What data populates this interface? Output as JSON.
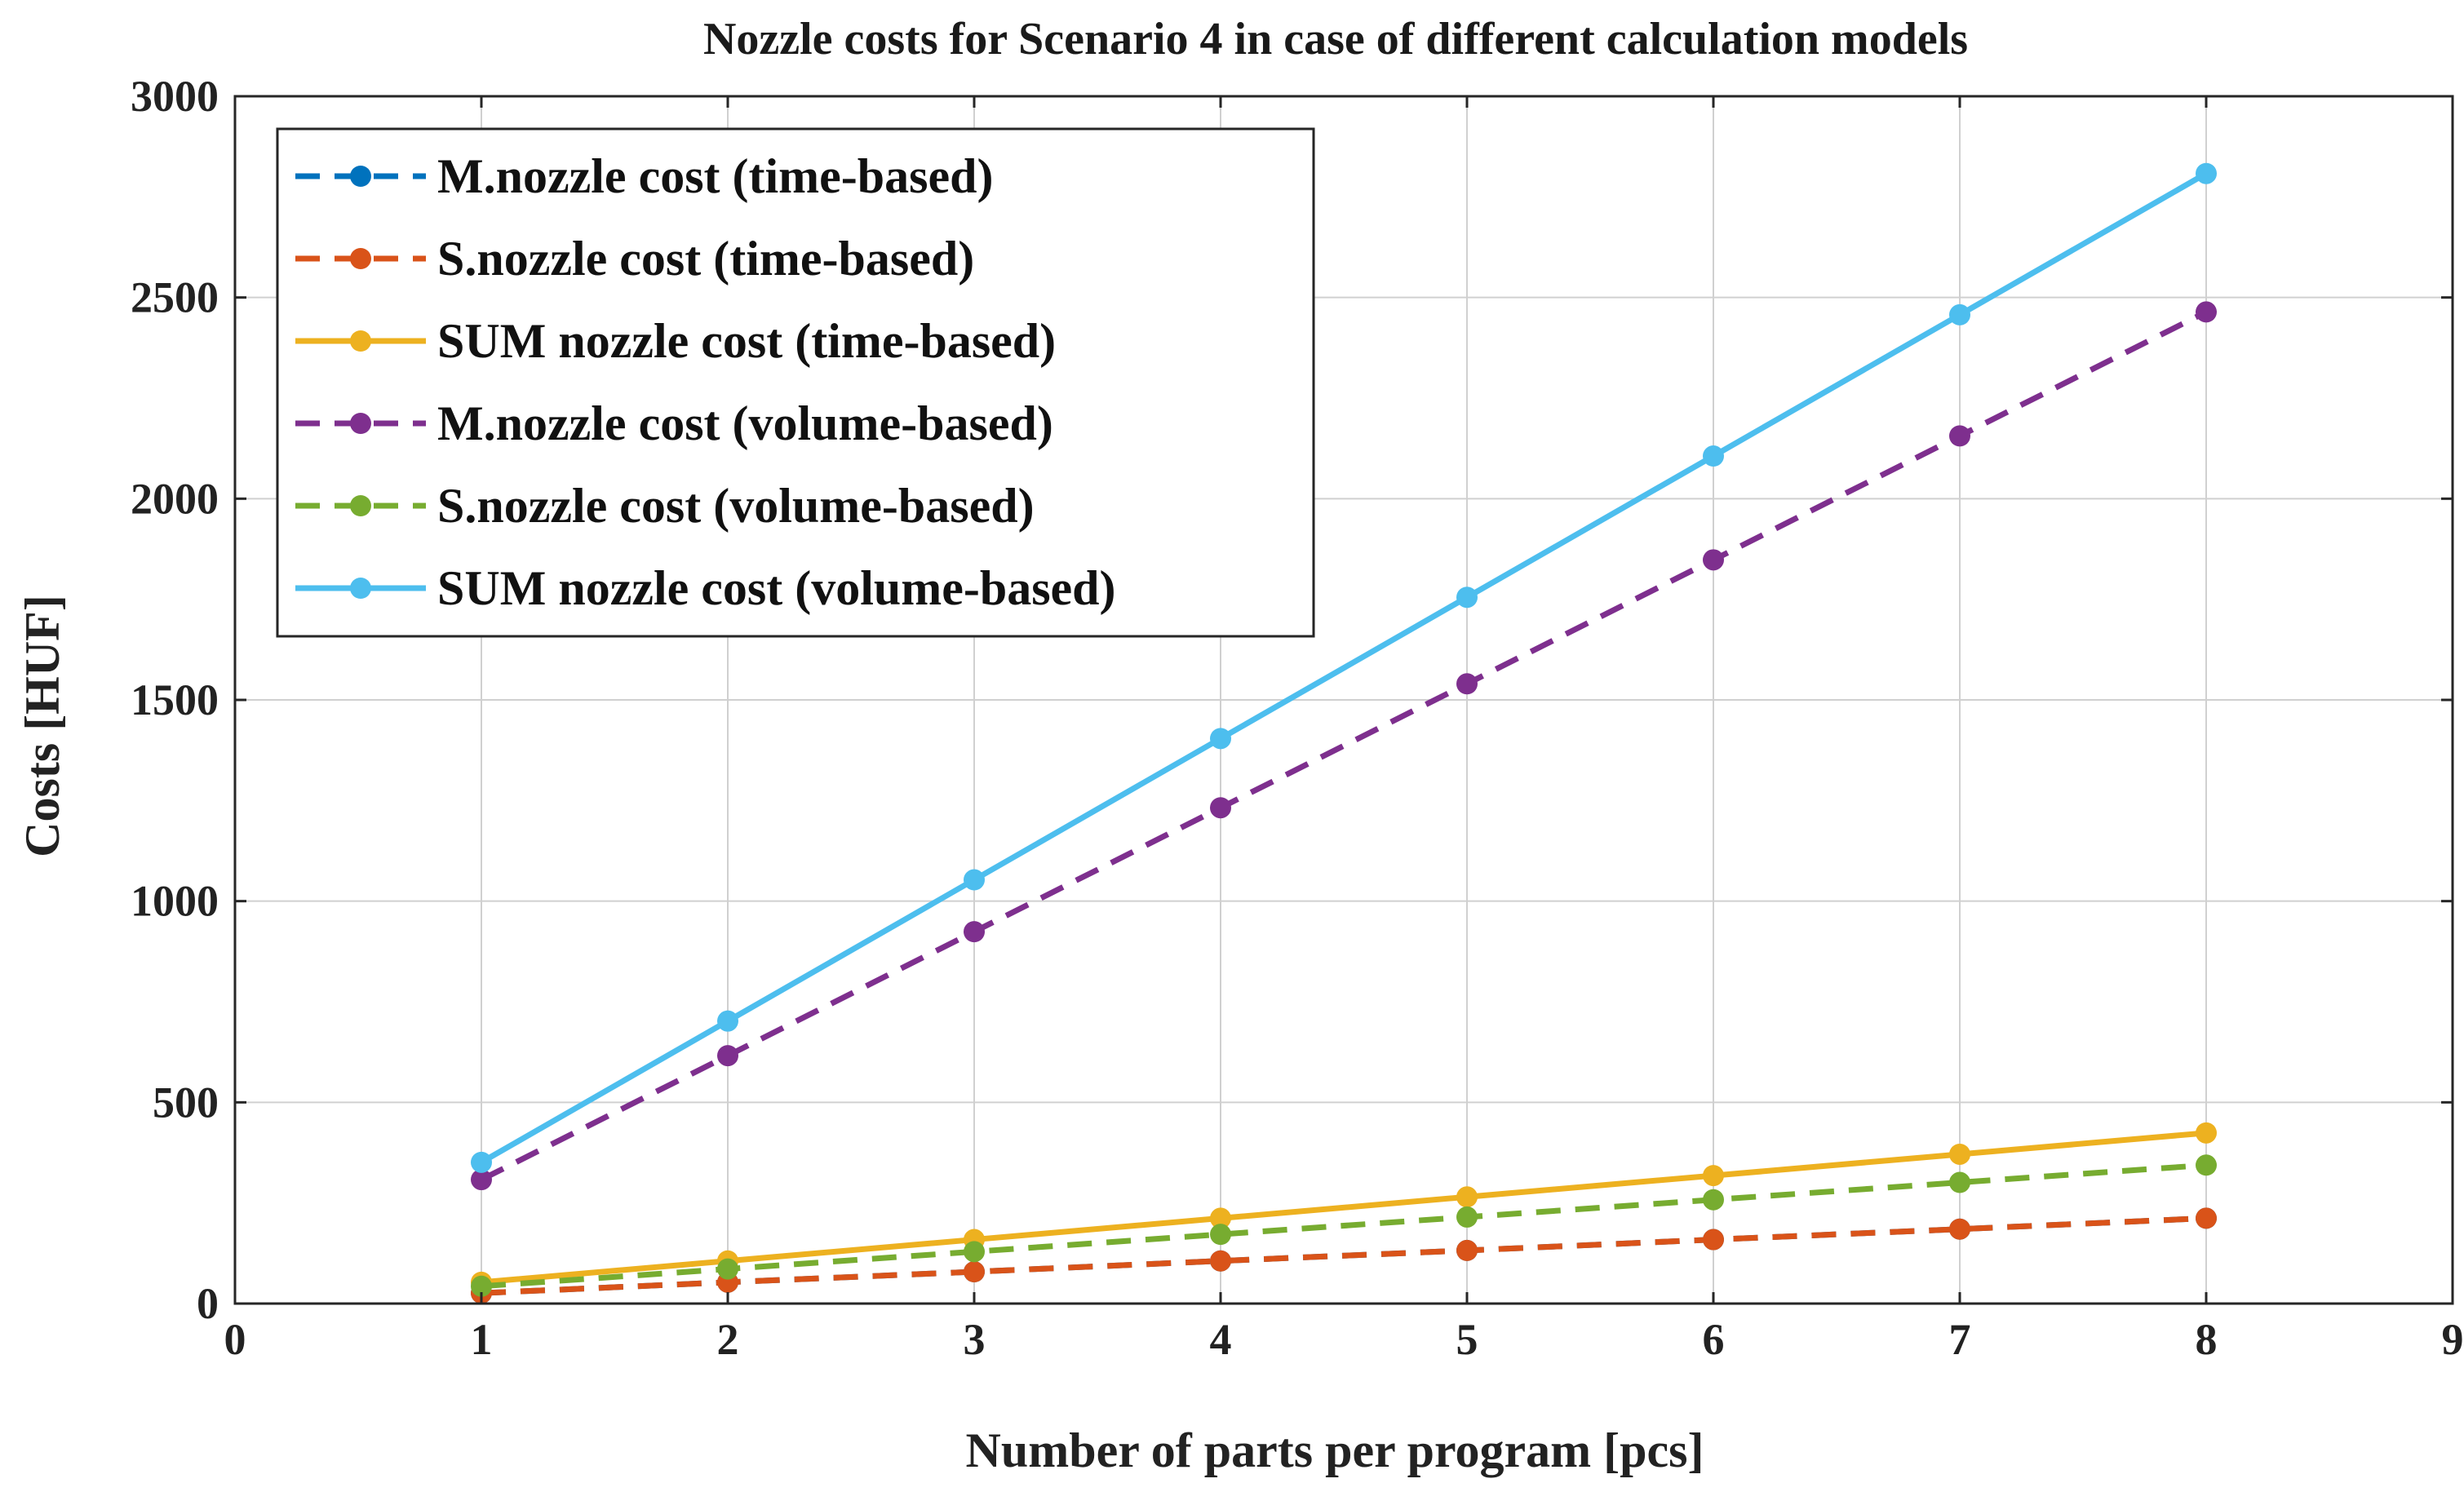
{
  "chart_data": {
    "type": "line",
    "title": "Nozzle costs for Scenario 4 in case of different calculation models",
    "xlabel": "Number of parts per program [pcs]",
    "ylabel": "Costs [HUF]",
    "xlim": [
      0,
      9
    ],
    "ylim": [
      0,
      3000
    ],
    "xticks": [
      0,
      1,
      2,
      3,
      4,
      5,
      6,
      7,
      8,
      9
    ],
    "yticks": [
      0,
      500,
      1000,
      1500,
      2000,
      2500,
      3000
    ],
    "grid": true,
    "legend_position": "top-left",
    "x": [
      1,
      2,
      3,
      4,
      5,
      6,
      7,
      8
    ],
    "series": [
      {
        "name": "M.nozzle cost (time-based)",
        "style": "dashed",
        "color": "#0072bd",
        "values": [
          26,
          53,
          79,
          106,
          132,
          159,
          185,
          212
        ]
      },
      {
        "name": "S.nozzle cost (time-based)",
        "style": "dashed",
        "color": "#d95319",
        "values": [
          26,
          53,
          79,
          106,
          132,
          159,
          185,
          212
        ]
      },
      {
        "name": "SUM nozzle cost (time-based)",
        "style": "solid",
        "color": "#edb120",
        "values": [
          53,
          106,
          159,
          212,
          265,
          318,
          371,
          424
        ]
      },
      {
        "name": "M.nozzle cost (volume-based)",
        "style": "dashed",
        "color": "#7e2f8e",
        "values": [
          308,
          616,
          924,
          1232,
          1540,
          1848,
          2156,
          2464
        ]
      },
      {
        "name": "S.nozzle cost (volume-based)",
        "style": "dashed",
        "color": "#77ac30",
        "values": [
          43,
          86,
          129,
          172,
          215,
          258,
          301,
          344
        ]
      },
      {
        "name": "SUM nozzle cost (volume-based)",
        "style": "solid",
        "color": "#4dbeee",
        "values": [
          351,
          702,
          1053,
          1404,
          1755,
          2106,
          2457,
          2808
        ]
      }
    ]
  }
}
